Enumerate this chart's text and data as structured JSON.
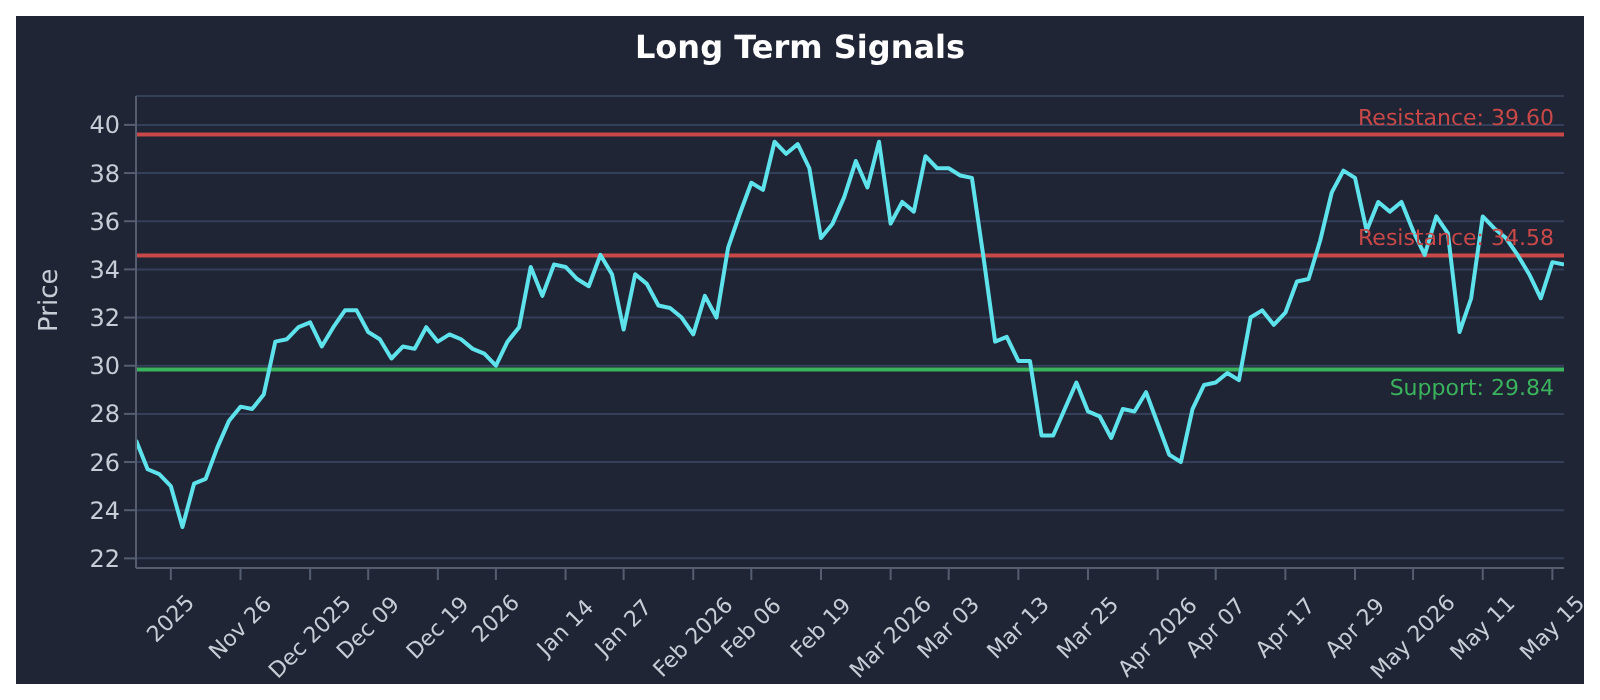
{
  "chart_data": {
    "type": "line",
    "title": "Long Term Signals",
    "ylabel": "Price",
    "categories": [
      null,
      null,
      null,
      "2025",
      null,
      null,
      null,
      null,
      null,
      "Nov 26",
      null,
      null,
      null,
      null,
      null,
      "Dec 2025",
      null,
      null,
      null,
      null,
      "Dec 09",
      null,
      null,
      null,
      null,
      null,
      "Dec 19",
      null,
      null,
      null,
      null,
      "2026",
      null,
      null,
      null,
      null,
      null,
      "Jan 14",
      null,
      null,
      null,
      null,
      "Jan 27",
      null,
      null,
      null,
      null,
      null,
      "Feb 2026",
      null,
      null,
      null,
      null,
      "Feb 06",
      null,
      null,
      null,
      null,
      null,
      "Feb 19",
      null,
      null,
      null,
      null,
      null,
      "Mar 2026",
      null,
      null,
      null,
      null,
      "Mar 03",
      null,
      null,
      null,
      null,
      null,
      "Mar 13",
      null,
      null,
      null,
      null,
      null,
      "Mar 25",
      null,
      null,
      null,
      null,
      null,
      "Apr 2026",
      null,
      null,
      null,
      null,
      "Apr 07",
      null,
      null,
      null,
      null,
      null,
      "Apr 17",
      null,
      null,
      null,
      null,
      null,
      "Apr 29",
      null,
      null,
      null,
      null,
      "May 2026",
      null,
      null,
      null,
      null,
      null,
      "May 11",
      null,
      null,
      null,
      null,
      null,
      "May 15",
      null
    ],
    "series": [
      {
        "color": "#5ee3ec",
        "values": [
          26.9,
          25.7,
          25.5,
          25.0,
          23.3,
          25.1,
          25.3,
          26.6,
          27.7,
          28.3,
          28.2,
          28.8,
          31.0,
          31.1,
          31.6,
          31.8,
          30.8,
          31.6,
          32.3,
          32.3,
          31.4,
          31.1,
          30.3,
          30.8,
          30.7,
          31.6,
          31.0,
          31.3,
          31.1,
          30.7,
          30.5,
          30.0,
          31.0,
          31.6,
          34.1,
          32.9,
          34.2,
          34.1,
          33.6,
          33.3,
          34.6,
          33.8,
          31.5,
          33.8,
          33.4,
          32.5,
          32.4,
          32.0,
          31.3,
          32.9,
          32.0,
          34.9,
          36.3,
          37.6,
          37.3,
          39.3,
          38.8,
          39.2,
          38.2,
          35.3,
          35.9,
          37.0,
          38.5,
          37.4,
          39.3,
          35.9,
          36.8,
          36.4,
          38.7,
          38.2,
          38.2,
          37.9,
          37.8,
          34.5,
          31.0,
          31.2,
          30.2,
          30.2,
          27.1,
          27.1,
          28.2,
          29.3,
          28.1,
          27.9,
          27.0,
          28.2,
          28.1,
          28.9,
          27.6,
          26.3,
          26.0,
          28.2,
          29.2,
          29.3,
          29.7,
          29.4,
          32.0,
          32.3,
          31.7,
          32.2,
          33.5,
          33.6,
          35.2,
          37.2,
          38.1,
          37.8,
          35.6,
          36.8,
          36.4,
          36.8,
          35.6,
          34.6,
          36.2,
          35.5,
          31.4,
          32.8,
          36.2,
          35.7,
          35.3,
          34.6,
          33.8,
          32.8,
          34.3,
          34.2
        ]
      }
    ],
    "ylim": [
      21.6,
      41.2
    ],
    "yticks": [
      22,
      24,
      26,
      28,
      30,
      32,
      34,
      36,
      38,
      40
    ],
    "grid": "y",
    "marker": "none",
    "ref_lines": [
      {
        "axis": "y",
        "value": 39.6,
        "label": "Resistance: 39.60",
        "color": "#c94848"
      },
      {
        "axis": "y",
        "value": 34.58,
        "label": "Resistance: 34.58",
        "color": "#c94848"
      },
      {
        "axis": "y",
        "value": 29.84,
        "label": "Support: 29.84",
        "color": "#3bb25c"
      }
    ]
  }
}
